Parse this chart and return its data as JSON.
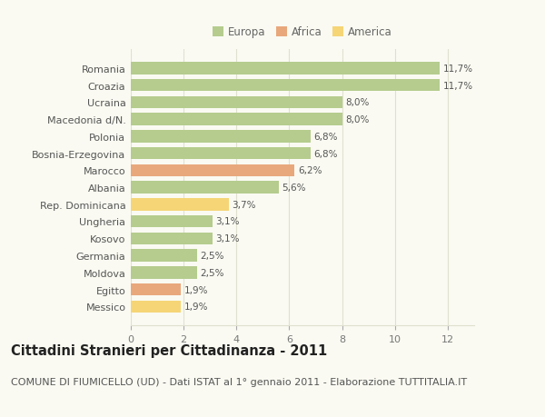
{
  "categories": [
    "Romania",
    "Croazia",
    "Ucraina",
    "Macedonia d/N.",
    "Polonia",
    "Bosnia-Erzegovina",
    "Marocco",
    "Albania",
    "Rep. Dominicana",
    "Ungheria",
    "Kosovo",
    "Germania",
    "Moldova",
    "Egitto",
    "Messico"
  ],
  "values": [
    11.7,
    11.7,
    8.0,
    8.0,
    6.8,
    6.8,
    6.2,
    5.6,
    3.7,
    3.1,
    3.1,
    2.5,
    2.5,
    1.9,
    1.9
  ],
  "labels": [
    "11,7%",
    "11,7%",
    "8,0%",
    "8,0%",
    "6,8%",
    "6,8%",
    "6,2%",
    "5,6%",
    "3,7%",
    "3,1%",
    "3,1%",
    "2,5%",
    "2,5%",
    "1,9%",
    "1,9%"
  ],
  "continent": [
    "Europa",
    "Europa",
    "Europa",
    "Europa",
    "Europa",
    "Europa",
    "Africa",
    "Europa",
    "America",
    "Europa",
    "Europa",
    "Europa",
    "Europa",
    "Africa",
    "America"
  ],
  "colors": {
    "Europa": "#b5cc8e",
    "Africa": "#e8a87c",
    "America": "#f5d576"
  },
  "title": "Cittadini Stranieri per Cittadinanza - 2011",
  "subtitle": "COMUNE DI FIUMICELLO (UD) - Dati ISTAT al 1° gennaio 2011 - Elaborazione TUTTITALIA.IT",
  "xlim": [
    0,
    13
  ],
  "xticks": [
    0,
    2,
    4,
    6,
    8,
    10,
    12
  ],
  "background_color": "#fafaf2",
  "grid_color": "#e0e0d0",
  "bar_height": 0.72,
  "title_fontsize": 10.5,
  "subtitle_fontsize": 8,
  "label_fontsize": 7.5,
  "ytick_fontsize": 8,
  "xtick_fontsize": 8,
  "legend_fontsize": 8.5
}
